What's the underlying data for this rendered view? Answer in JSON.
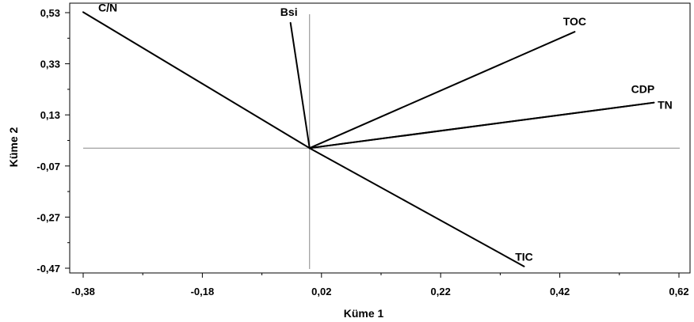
{
  "chart_data": {
    "type": "biplot",
    "xlabel": "Küme 1",
    "ylabel": "Küme 2",
    "xlim": [
      -0.4,
      0.62
    ],
    "ylim": [
      -0.48,
      0.54
    ],
    "xticks": [
      "-0,38",
      "-0,18",
      "0,02",
      "0,22",
      "0,42",
      "0,62"
    ],
    "xtick_values": [
      -0.38,
      -0.18,
      0.02,
      0.22,
      0.42,
      0.62
    ],
    "yticks": [
      "0,53",
      "0,33",
      "0,13",
      "-0,07",
      "-0,27",
      "-0,47"
    ],
    "ytick_values": [
      0.53,
      0.33,
      0.13,
      -0.07,
      -0.27,
      -0.47
    ],
    "origin": [
      0.0,
      0.0
    ],
    "grid": false,
    "vectors": [
      {
        "name": "C/N",
        "x": -0.38,
        "y": 0.532
      },
      {
        "name": "Bsi",
        "x": -0.032,
        "y": 0.49
      },
      {
        "name": "TOC",
        "x": 0.445,
        "y": 0.455
      },
      {
        "name": "CDP",
        "x": 0.578,
        "y": 0.178
      },
      {
        "name": "TN",
        "x": 0.578,
        "y": 0.178
      },
      {
        "name": "TIC",
        "x": 0.36,
        "y": -0.463
      }
    ]
  }
}
